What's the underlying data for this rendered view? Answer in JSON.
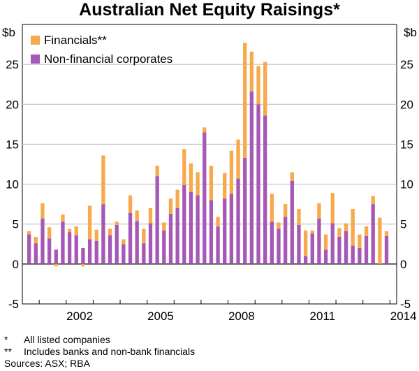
{
  "colors": {
    "financials": "#F7A94B",
    "non_financial": "#A558B6",
    "axis": "#000000",
    "grid": "#B8B8B8"
  },
  "chart_data": {
    "type": "bar",
    "stacked": true,
    "title": "Australian Net Equity Raisings*",
    "ylabel_left": "$b",
    "ylabel_right": "$b",
    "ylim": [
      -5,
      30
    ],
    "yticks": [
      -5,
      0,
      5,
      10,
      15,
      20,
      25
    ],
    "ytick_labels": [
      "-5",
      "0",
      "5",
      "10",
      "15",
      "20",
      "25"
    ],
    "xticks": [
      "2002",
      "2005",
      "2008",
      "2011",
      "2014"
    ],
    "x_start": "2000 Q3",
    "x_end": "2013 Q4",
    "legend_position": "top-left",
    "series": [
      {
        "name": "Financials**",
        "color": "#F7A94B",
        "values": [
          0.4,
          0.8,
          1.9,
          1.4,
          -0.3,
          0.9,
          0.4,
          1.1,
          -0.3,
          4.2,
          1.4,
          6.1,
          0.8,
          0.4,
          0.6,
          2.2,
          1.3,
          1.8,
          1.9,
          1.3,
          1.0,
          1.9,
          2.3,
          4.5,
          3.6,
          2.9,
          0.6,
          4.3,
          1.2,
          3.2,
          5.4,
          4.9,
          14.4,
          5.0,
          4.8,
          6.7,
          3.5,
          0.8,
          1.6,
          1.1,
          2.0,
          3.2,
          0.4,
          1.9,
          1.9,
          3.8,
          1.1,
          1.0,
          4.6,
          1.7,
          1.2,
          1.0,
          5.8,
          0.6
        ]
      },
      {
        "name": "Non-financial corporates",
        "color": "#A558B6",
        "values": [
          3.7,
          2.6,
          5.7,
          3.2,
          1.8,
          5.3,
          4.0,
          3.6,
          2.0,
          3.1,
          2.9,
          7.5,
          3.6,
          4.9,
          2.5,
          6.4,
          5.4,
          2.6,
          5.1,
          11.0,
          4.2,
          6.3,
          7.0,
          9.9,
          9.0,
          8.6,
          16.5,
          8.0,
          4.7,
          8.2,
          8.8,
          10.7,
          13.3,
          21.6,
          20.0,
          18.6,
          5.3,
          4.4,
          5.9,
          10.4,
          4.9,
          1.0,
          3.8,
          5.7,
          1.8,
          5.1,
          3.4,
          4.1,
          2.3,
          2.0,
          3.5,
          7.5,
          0.0,
          3.5
        ]
      }
    ]
  },
  "footnotes": [
    {
      "mark": "*",
      "text": "All listed companies"
    },
    {
      "mark": "**",
      "text": "Includes banks and non-bank financials"
    }
  ],
  "sources": "Sources: ASX; RBA"
}
